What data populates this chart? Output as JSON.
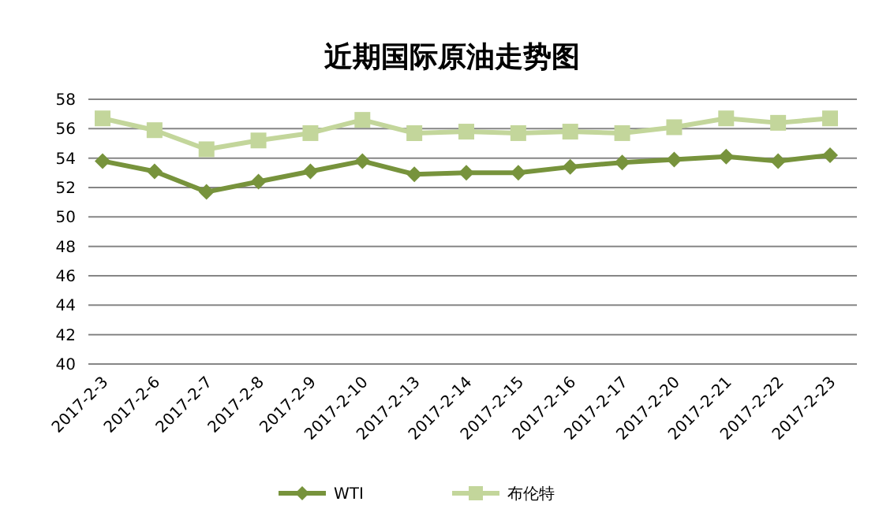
{
  "chart_data": {
    "type": "line",
    "title": "近期国际原油走势图",
    "categories": [
      "2017-2-3",
      "2017-2-6",
      "2017-2-7",
      "2017-2-8",
      "2017-2-9",
      "2017-2-10",
      "2017-2-13",
      "2017-2-14",
      "2017-2-15",
      "2017-2-16",
      "2017-2-17",
      "2017-2-20",
      "2017-2-21",
      "2017-2-22",
      "2017-2-23"
    ],
    "series": [
      {
        "name": "WTI",
        "color": "#77933c",
        "marker": "diamond",
        "values": [
          53.8,
          53.1,
          51.7,
          52.4,
          53.1,
          53.8,
          52.9,
          53.0,
          53.0,
          53.4,
          53.7,
          53.9,
          54.1,
          53.8,
          54.2
        ]
      },
      {
        "name": "布伦特",
        "color": "#c3d69b",
        "marker": "square",
        "values": [
          56.7,
          55.9,
          54.6,
          55.2,
          55.7,
          56.6,
          55.7,
          55.8,
          55.7,
          55.8,
          55.7,
          56.1,
          56.7,
          56.4,
          56.7
        ]
      }
    ],
    "ylim": [
      40,
      58
    ],
    "yticks": [
      40,
      42,
      44,
      46,
      48,
      50,
      52,
      54,
      56,
      58
    ],
    "grid": "y",
    "legend": "bottom"
  }
}
